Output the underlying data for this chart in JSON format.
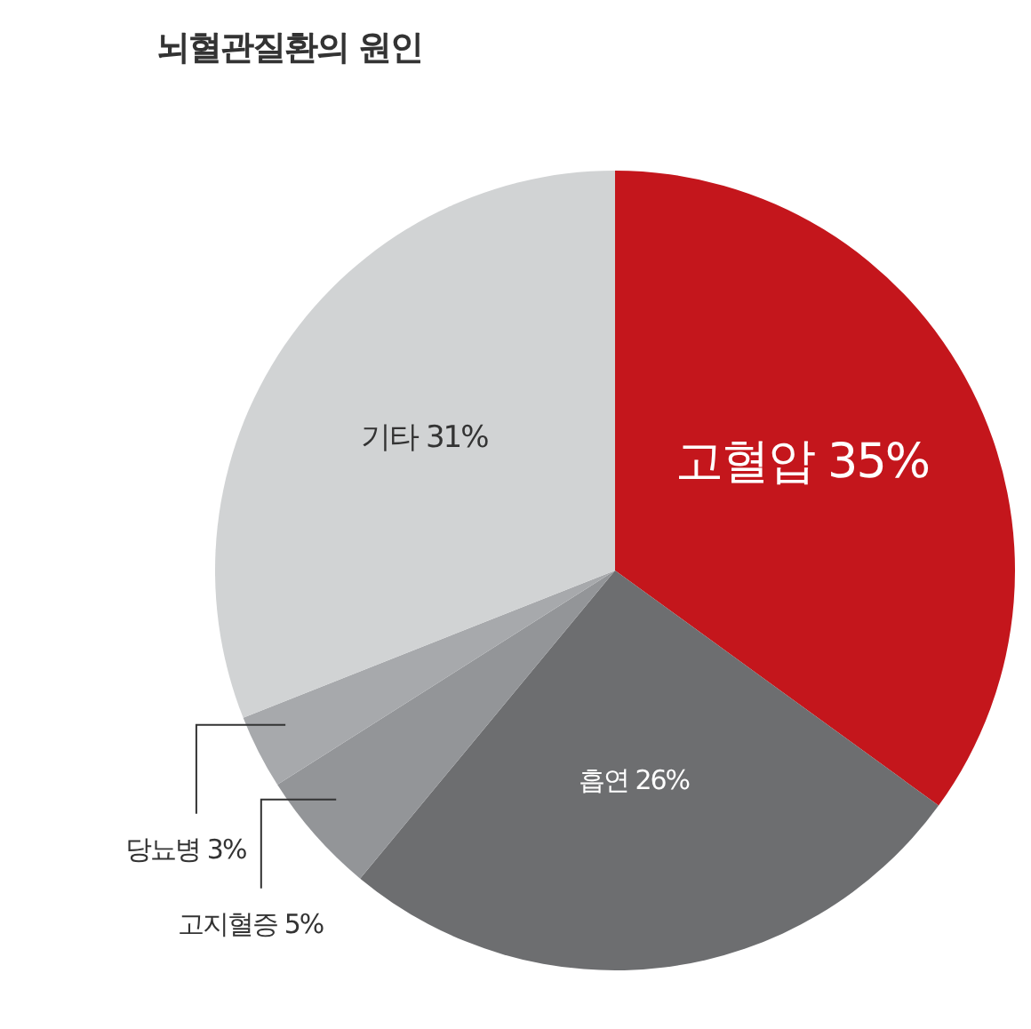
{
  "chart_data": {
    "type": "pie",
    "title": "뇌혈관질환의 원인",
    "categories": [
      "고혈압",
      "흡연",
      "고지혈증",
      "당뇨병",
      "기타"
    ],
    "values": [
      35,
      26,
      5,
      3,
      31
    ],
    "value_labels": [
      "35%",
      "26%",
      "5%",
      "3%",
      "31%"
    ],
    "colors": [
      "#c4161c",
      "#6d6e70",
      "#939598",
      "#a7a9ac",
      "#d1d3d4"
    ]
  }
}
